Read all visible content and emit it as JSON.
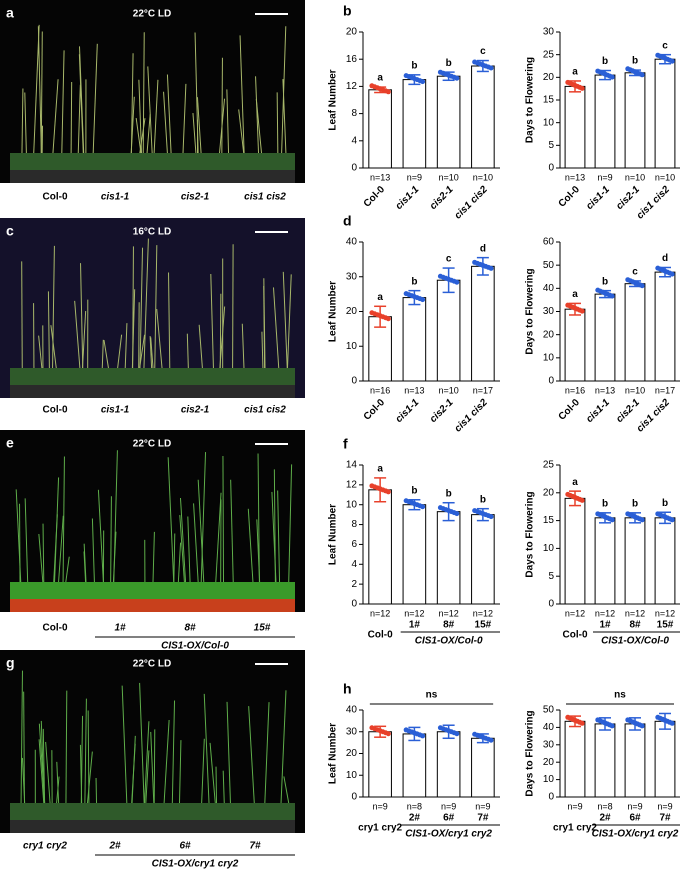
{
  "photos": [
    {
      "panel": "a",
      "title": "22°C LD",
      "labels": [
        "Col-0",
        "cis1-1",
        "cis2-1",
        "cis1 cis2"
      ]
    },
    {
      "panel": "c",
      "title": "16°C LD",
      "labels": [
        "Col-0",
        "cis1-1",
        "cis2-1",
        "cis1 cis2"
      ]
    },
    {
      "panel": "e",
      "title": "22°C LD",
      "labels": [
        "Col-0",
        "1#",
        "8#",
        "15#"
      ],
      "group_label": "CIS1-OX/Col-0"
    },
    {
      "panel": "g",
      "title": "22°C LD",
      "labels": [
        "cry1 cry2",
        "2#",
        "6#",
        "7#"
      ],
      "group_label": "CIS1-OX/cry1 cry2"
    }
  ],
  "chart_data": [
    {
      "type": "bar",
      "panel": "b",
      "y_label": "Leaf Number",
      "categories": [
        "Col-0",
        "cis1-1",
        "cis2-1",
        "cis1 cis2"
      ],
      "values": [
        11.5,
        13,
        13.5,
        15
      ],
      "errors": [
        0.4,
        0.7,
        0.6,
        0.8
      ],
      "colors": [
        "#e8402a",
        "#2a5fd6",
        "#2a5fd6",
        "#2a5fd6"
      ],
      "significance": [
        "a",
        "b",
        "b",
        "c"
      ],
      "n_labels": [
        "n=13",
        "n=9",
        "n=10",
        "n=10"
      ],
      "ylim": [
        0,
        20
      ],
      "yticks": [
        0,
        4,
        8,
        12,
        16,
        20
      ]
    },
    {
      "type": "bar",
      "y_label": "Days to Flowering",
      "categories": [
        "Col-0",
        "cis1-1",
        "cis2-1",
        "cis1 cis2"
      ],
      "values": [
        18,
        20.5,
        21,
        24
      ],
      "errors": [
        1.2,
        1,
        0.6,
        1
      ],
      "colors": [
        "#e8402a",
        "#2a5fd6",
        "#2a5fd6",
        "#2a5fd6"
      ],
      "significance": [
        "a",
        "b",
        "b",
        "c"
      ],
      "n_labels": [
        "n=13",
        "n=9",
        "n=10",
        "n=10"
      ],
      "ylim": [
        0,
        30
      ],
      "yticks": [
        0,
        5,
        10,
        15,
        20,
        25,
        30
      ]
    },
    {
      "type": "bar",
      "panel": "d",
      "y_label": "Leaf Number",
      "categories": [
        "Col-0",
        "cis1-1",
        "cis2-1",
        "cis1 cis2"
      ],
      "values": [
        18.5,
        24,
        29,
        33
      ],
      "errors": [
        3,
        2,
        3.5,
        2.5
      ],
      "colors": [
        "#e8402a",
        "#2a5fd6",
        "#2a5fd6",
        "#2a5fd6"
      ],
      "significance": [
        "a",
        "b",
        "c",
        "d"
      ],
      "n_labels": [
        "n=16",
        "n=13",
        "n=10",
        "n=17"
      ],
      "ylim": [
        0,
        40
      ],
      "yticks": [
        0,
        10,
        20,
        30,
        40
      ]
    },
    {
      "type": "bar",
      "y_label": "Days to Flowering",
      "categories": [
        "Col-0",
        "cis1-1",
        "cis2-1",
        "cis1 cis2"
      ],
      "values": [
        31,
        37.5,
        42,
        47
      ],
      "errors": [
        2.5,
        1.5,
        1.2,
        2
      ],
      "colors": [
        "#e8402a",
        "#2a5fd6",
        "#2a5fd6",
        "#2a5fd6"
      ],
      "significance": [
        "a",
        "b",
        "c",
        "d"
      ],
      "n_labels": [
        "n=16",
        "n=13",
        "n=10",
        "n=17"
      ],
      "ylim": [
        0,
        60
      ],
      "yticks": [
        0,
        10,
        20,
        30,
        40,
        50,
        60
      ]
    },
    {
      "type": "bar",
      "panel": "f",
      "y_label": "Leaf Number",
      "categories": [
        "Col-0",
        "1#",
        "8#",
        "15#"
      ],
      "group_label": "CIS1-OX/Col-0",
      "values": [
        11.5,
        10,
        9.3,
        9
      ],
      "errors": [
        1.2,
        0.5,
        0.9,
        0.6
      ],
      "colors": [
        "#e8402a",
        "#2a5fd6",
        "#2a5fd6",
        "#2a5fd6"
      ],
      "significance": [
        "a",
        "b",
        "b",
        "b"
      ],
      "n_labels": [
        "n=12",
        "n=12",
        "n=12",
        "n=12"
      ],
      "ylim": [
        0,
        14
      ],
      "yticks": [
        0,
        2,
        4,
        6,
        8,
        10,
        12,
        14
      ]
    },
    {
      "type": "bar",
      "y_label": "Days to Flowering",
      "categories": [
        "Col-0",
        "1#",
        "8#",
        "15#"
      ],
      "group_label": "CIS1-OX/Col-0",
      "values": [
        19,
        15.5,
        15.5,
        15.5
      ],
      "errors": [
        1.3,
        0.9,
        0.9,
        1
      ],
      "colors": [
        "#e8402a",
        "#2a5fd6",
        "#2a5fd6",
        "#2a5fd6"
      ],
      "significance": [
        "a",
        "b",
        "b",
        "b"
      ],
      "n_labels": [
        "n=12",
        "n=12",
        "n=12",
        "n=12"
      ],
      "ylim": [
        0,
        25
      ],
      "yticks": [
        0,
        5,
        10,
        15,
        20,
        25
      ]
    },
    {
      "type": "bar",
      "panel": "h",
      "y_label": "Leaf Number",
      "categories": [
        "cry1 cry2",
        "2#",
        "6#",
        "7#"
      ],
      "group_label": "CIS1-OX/cry1 cry2",
      "values": [
        30,
        29,
        30,
        27
      ],
      "errors": [
        2.5,
        3,
        3,
        2
      ],
      "colors": [
        "#e8402a",
        "#2a5fd6",
        "#2a5fd6",
        "#2a5fd6"
      ],
      "significance": "ns",
      "n_labels": [
        "n=9",
        "n=8",
        "n=9",
        "n=9"
      ],
      "ylim": [
        0,
        40
      ],
      "yticks": [
        0,
        10,
        20,
        30,
        40
      ]
    },
    {
      "type": "bar",
      "y_label": "Days to Flowering",
      "categories": [
        "cry1 cry2",
        "2#",
        "6#",
        "7#"
      ],
      "group_label": "CIS1-OX/cry1 cry2",
      "values": [
        43.5,
        42,
        42,
        43.5
      ],
      "errors": [
        3,
        3.5,
        3.5,
        4.5
      ],
      "colors": [
        "#e8402a",
        "#2a5fd6",
        "#2a5fd6",
        "#2a5fd6"
      ],
      "significance": "ns",
      "n_labels": [
        "n=9",
        "n=8",
        "n=9",
        "n=9"
      ],
      "ylim": [
        0,
        50
      ],
      "yticks": [
        0,
        10,
        20,
        30,
        40,
        50
      ]
    }
  ]
}
